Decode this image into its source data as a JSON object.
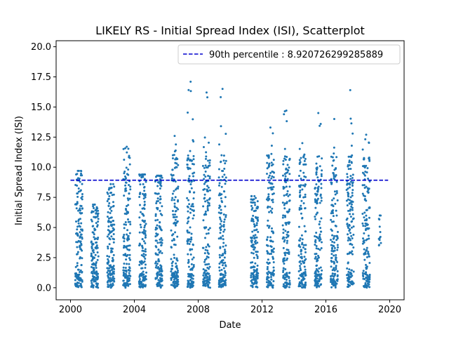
{
  "chart_data": {
    "type": "scatter",
    "title": "LIKELY RS - Initial Spread Index (ISI), Scatterplot",
    "xlabel": "Date",
    "ylabel": "Initial Spread Index (ISI)",
    "xlim": [
      1999.1,
      2020.9
    ],
    "ylim": [
      -1.0,
      20.5
    ],
    "x_ticks": [
      2000,
      2004,
      2008,
      2012,
      2016,
      2020
    ],
    "y_ticks": [
      0.0,
      2.5,
      5.0,
      7.5,
      10.0,
      12.5,
      15.0,
      17.5,
      20.0
    ],
    "y_tick_labels": [
      "0.0",
      "2.5",
      "5.0",
      "7.5",
      "10.0",
      "12.5",
      "15.0",
      "17.5",
      "20.0"
    ],
    "point_color": "#1f77b4",
    "reference_line": {
      "label": "90th percentile : 8.920726299285889",
      "value": 8.920726299285889,
      "x_range": [
        2000.0,
        2019.9
      ],
      "color": "#0000cd",
      "style": "dashed"
    },
    "legend_position": "upper right",
    "seasons": [
      {
        "year": 2000,
        "start": 2000.3,
        "end": 2000.75,
        "max": 9.7
      },
      {
        "year": 2001,
        "start": 2001.3,
        "end": 2001.75,
        "max": 6.9
      },
      {
        "year": 2002,
        "start": 2002.3,
        "end": 2002.75,
        "max": 8.6
      },
      {
        "year": 2003,
        "start": 2003.3,
        "end": 2003.75,
        "max": 11.7
      },
      {
        "year": 2004,
        "start": 2004.3,
        "end": 2004.75,
        "max": 9.4
      },
      {
        "year": 2005,
        "start": 2005.3,
        "end": 2005.75,
        "max": 9.3
      },
      {
        "year": 2006,
        "start": 2006.3,
        "end": 2006.75,
        "max": 12.6
      },
      {
        "year": 2007,
        "start": 2007.3,
        "end": 2007.75,
        "max": 17.1
      },
      {
        "year": 2008,
        "start": 2008.3,
        "end": 2008.75,
        "max": 16.2
      },
      {
        "year": 2009,
        "start": 2009.3,
        "end": 2009.75,
        "max": 16.5
      },
      {
        "year": 2011,
        "start": 2011.3,
        "end": 2011.75,
        "max": 7.6
      },
      {
        "year": 2012,
        "start": 2012.3,
        "end": 2012.75,
        "max": 13.3
      },
      {
        "year": 2013,
        "start": 2013.3,
        "end": 2013.75,
        "max": 14.7
      },
      {
        "year": 2014,
        "start": 2014.3,
        "end": 2014.75,
        "max": 12.0
      },
      {
        "year": 2015,
        "start": 2015.3,
        "end": 2015.75,
        "max": 14.5
      },
      {
        "year": 2016,
        "start": 2016.3,
        "end": 2016.75,
        "max": 14.0
      },
      {
        "year": 2017,
        "start": 2017.3,
        "end": 2017.75,
        "max": 16.4
      },
      {
        "year": 2018,
        "start": 2018.3,
        "end": 2018.75,
        "max": 12.7
      },
      {
        "year": 2019,
        "start": 2019.3,
        "end": 2019.45,
        "max": 6.0
      }
    ]
  }
}
